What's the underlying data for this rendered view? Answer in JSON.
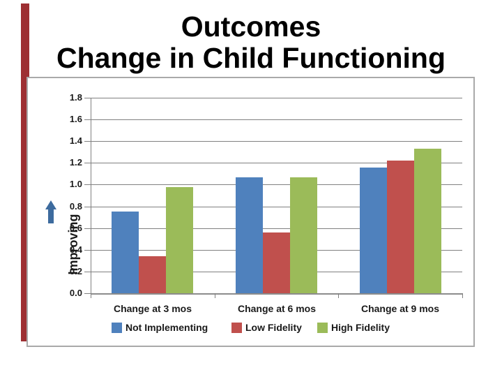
{
  "title": {
    "line1": "Outcomes",
    "line2": "Change in Child Functioning"
  },
  "decorations": {
    "left_accent_bar_color": "#9d2f32"
  },
  "icons": {
    "improving_arrow": "up-arrow"
  },
  "chart_data": {
    "type": "bar",
    "title": "Outcomes Change in Child Functioning",
    "categories": [
      "Change at 3 mos",
      "Change at 6 mos",
      "Change at 9 mos"
    ],
    "series": [
      {
        "name": "Not Implementing",
        "color": "#4f81bd",
        "values": [
          0.75,
          1.07,
          1.16
        ]
      },
      {
        "name": "Low Fidelity",
        "color": "#c0504d",
        "values": [
          0.34,
          0.56,
          1.22
        ]
      },
      {
        "name": "High Fidelity",
        "color": "#9bbb59",
        "values": [
          0.98,
          1.07,
          1.33
        ]
      }
    ],
    "xlabel": "",
    "ylabel": "Improving",
    "ylim": [
      0,
      1.8
    ],
    "ytick_step": 0.2,
    "ytick_labels": [
      "0.0",
      "0.2",
      "0.4",
      "0.6",
      "0.8",
      "1.0",
      "1.2",
      "1.4",
      "1.6",
      "1.8"
    ],
    "grid": true,
    "legend_position": "bottom",
    "colors": {
      "gridline": "#808080",
      "axis": "#8c8c8c",
      "frame_border": "#a9a9a9",
      "arrow": "#3d6b9e",
      "text": "#1a1a1a"
    }
  }
}
